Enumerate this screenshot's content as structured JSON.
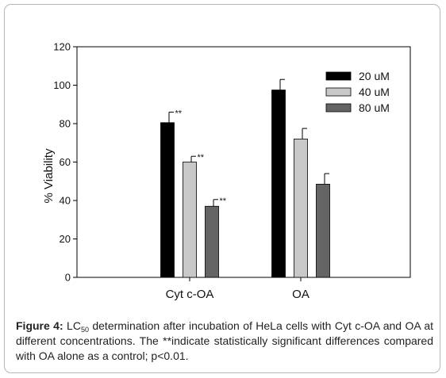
{
  "chart_data": {
    "type": "bar",
    "categories": [
      "Cyt c-OA",
      "OA"
    ],
    "series": [
      {
        "name": "20 uM",
        "values": [
          80.5,
          97.5
        ],
        "errors": [
          5.5,
          5.5
        ],
        "color": "#000000"
      },
      {
        "name": "40 uM",
        "values": [
          60.0,
          72.0
        ],
        "errors": [
          3.0,
          5.5
        ],
        "color": "#c8c8c8"
      },
      {
        "name": "80 uM",
        "values": [
          37.0,
          48.5
        ],
        "errors": [
          3.5,
          5.5
        ],
        "color": "#646464"
      }
    ],
    "significance": [
      [
        "**",
        "**",
        "**"
      ],
      [
        "",
        "",
        ""
      ]
    ],
    "ylabel": "% Viability",
    "xlabel": "",
    "ylim": [
      0,
      120
    ],
    "yticks": [
      "0",
      "20",
      "40",
      "60",
      "80",
      "100",
      "120"
    ],
    "legend_position": "top-right",
    "grid": false
  },
  "caption": {
    "label": "Figure 4:",
    "pre_sub": "LC",
    "sub": "50",
    "text": "determination after incubation of HeLa cells with Cyt c-OA and OA at different concentrations. The **indicate statistically significant differences compared with OA alone as a control; p<0.01."
  }
}
